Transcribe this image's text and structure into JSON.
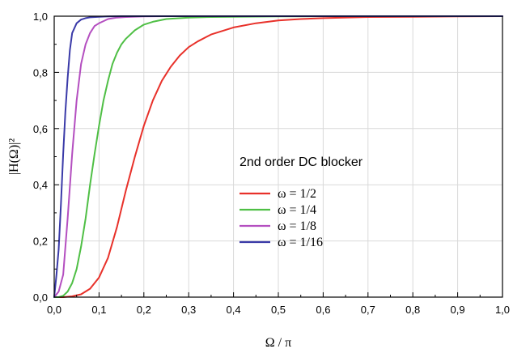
{
  "chart_data": {
    "type": "line",
    "title": "",
    "xlabel": "Ω / π",
    "ylabel": "|H(Ω)|²",
    "xlim": [
      0.0,
      1.0
    ],
    "ylim": [
      0.0,
      1.0
    ],
    "grid": true,
    "legend_placement": "center-right",
    "legend_title": "2nd order DC blocker",
    "x_tick_values": [
      0.0,
      0.1,
      0.2,
      0.3,
      0.4,
      0.5,
      0.6,
      0.7,
      0.8,
      0.9,
      1.0
    ],
    "x_tick_labels": [
      "0,0",
      "0,1",
      "0,2",
      "0,3",
      "0,4",
      "0,5",
      "0,6",
      "0,7",
      "0,8",
      "0,9",
      "1,0"
    ],
    "y_tick_values": [
      0.0,
      0.2,
      0.4,
      0.6,
      0.8,
      1.0
    ],
    "y_tick_labels": [
      "0,0",
      "0,2",
      "0,4",
      "0,6",
      "0,8",
      "1,0"
    ],
    "series": [
      {
        "name": "ω = 1/2",
        "color": "#e8312a",
        "x": [
          0.0,
          0.02,
          0.04,
          0.06,
          0.08,
          0.1,
          0.12,
          0.14,
          0.16,
          0.18,
          0.2,
          0.22,
          0.24,
          0.26,
          0.28,
          0.3,
          0.32,
          0.35,
          0.4,
          0.45,
          0.5,
          0.55,
          0.6,
          0.7,
          0.8,
          0.9,
          1.0
        ],
        "y": [
          0.0,
          0.0,
          0.003,
          0.01,
          0.03,
          0.07,
          0.14,
          0.25,
          0.38,
          0.5,
          0.61,
          0.7,
          0.77,
          0.82,
          0.86,
          0.89,
          0.91,
          0.935,
          0.96,
          0.975,
          0.985,
          0.99,
          0.993,
          0.997,
          0.998,
          0.999,
          1.0
        ]
      },
      {
        "name": "ω = 1/4",
        "color": "#4fbf45",
        "x": [
          0.0,
          0.01,
          0.02,
          0.03,
          0.04,
          0.05,
          0.06,
          0.07,
          0.08,
          0.09,
          0.1,
          0.11,
          0.12,
          0.13,
          0.14,
          0.15,
          0.16,
          0.18,
          0.2,
          0.22,
          0.25,
          0.3,
          0.35,
          0.4,
          0.5,
          0.6,
          0.8,
          1.0
        ],
        "y": [
          0.0,
          0.0,
          0.005,
          0.02,
          0.05,
          0.1,
          0.18,
          0.28,
          0.4,
          0.51,
          0.61,
          0.7,
          0.77,
          0.83,
          0.87,
          0.9,
          0.92,
          0.95,
          0.97,
          0.98,
          0.99,
          0.995,
          0.997,
          0.998,
          0.999,
          1.0,
          1.0,
          1.0
        ]
      },
      {
        "name": "ω = 1/8",
        "color": "#b44fc0",
        "x": [
          0.0,
          0.01,
          0.02,
          0.03,
          0.04,
          0.05,
          0.06,
          0.07,
          0.08,
          0.09,
          0.1,
          0.12,
          0.14,
          0.16,
          0.2,
          0.25,
          0.3,
          0.4,
          0.6,
          1.0
        ],
        "y": [
          0.0,
          0.02,
          0.08,
          0.28,
          0.51,
          0.7,
          0.83,
          0.9,
          0.94,
          0.965,
          0.975,
          0.99,
          0.995,
          0.997,
          0.999,
          1.0,
          1.0,
          1.0,
          1.0,
          1.0
        ]
      },
      {
        "name": "ω = 1/16",
        "color": "#3a3aa8",
        "x": [
          0.0,
          0.005,
          0.01,
          0.015,
          0.02,
          0.025,
          0.03,
          0.035,
          0.04,
          0.05,
          0.06,
          0.07,
          0.08,
          0.1,
          0.12,
          0.15,
          0.2,
          0.3,
          0.5,
          1.0
        ],
        "y": [
          0.0,
          0.08,
          0.17,
          0.33,
          0.51,
          0.66,
          0.78,
          0.88,
          0.94,
          0.975,
          0.988,
          0.993,
          0.996,
          0.998,
          0.999,
          1.0,
          1.0,
          1.0,
          1.0,
          1.0
        ]
      }
    ]
  }
}
